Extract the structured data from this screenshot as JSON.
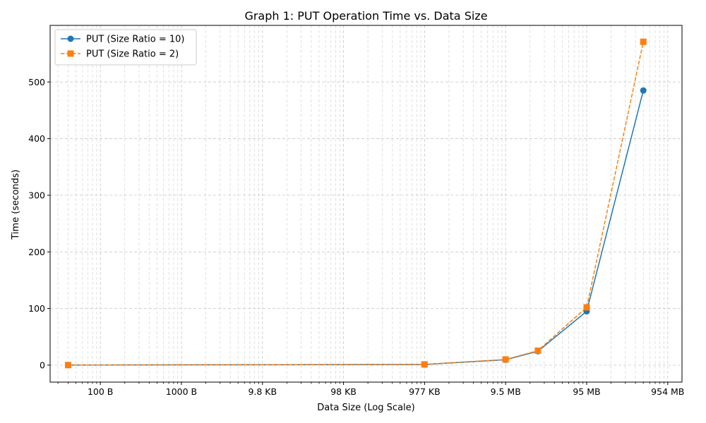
{
  "chart_data": {
    "type": "line",
    "title": "Graph 1: PUT Operation Time vs. Data Size",
    "xlabel": "Data Size (Log Scale)",
    "ylabel": "Time (seconds)",
    "x_scale": "log",
    "grid": true,
    "legend_position": "top-left",
    "xlim_bytes": [
      24,
      1500000000
    ],
    "ylim": [
      -30,
      600
    ],
    "x_ticks": [
      {
        "value": 100,
        "label": "100 B"
      },
      {
        "value": 1000,
        "label": "1000 B"
      },
      {
        "value": 10000,
        "label": "9.8 KB"
      },
      {
        "value": 100000,
        "label": "98 KB"
      },
      {
        "value": 1000000,
        "label": "977 KB"
      },
      {
        "value": 10000000,
        "label": "9.5 MB"
      },
      {
        "value": 100000000,
        "label": "95 MB"
      },
      {
        "value": 1000000000,
        "label": "954 MB"
      }
    ],
    "y_ticks": [
      0,
      100,
      200,
      300,
      400,
      500
    ],
    "series": [
      {
        "name": "PUT (Size Ratio = 10)",
        "color": "#1f77b4",
        "marker": "circle",
        "line_style": "solid",
        "x": [
          40,
          1000000,
          10000000,
          25000000,
          100000000,
          500000000
        ],
        "y": [
          0.1,
          1.2,
          9.5,
          24.5,
          95,
          485
        ]
      },
      {
        "name": "PUT (Size Ratio = 2)",
        "color": "#ff7f0e",
        "marker": "square",
        "line_style": "dashed",
        "x": [
          40,
          1000000,
          10000000,
          25000000,
          100000000,
          500000000
        ],
        "y": [
          0.1,
          1.3,
          10,
          25.5,
          102,
          571
        ]
      }
    ]
  }
}
